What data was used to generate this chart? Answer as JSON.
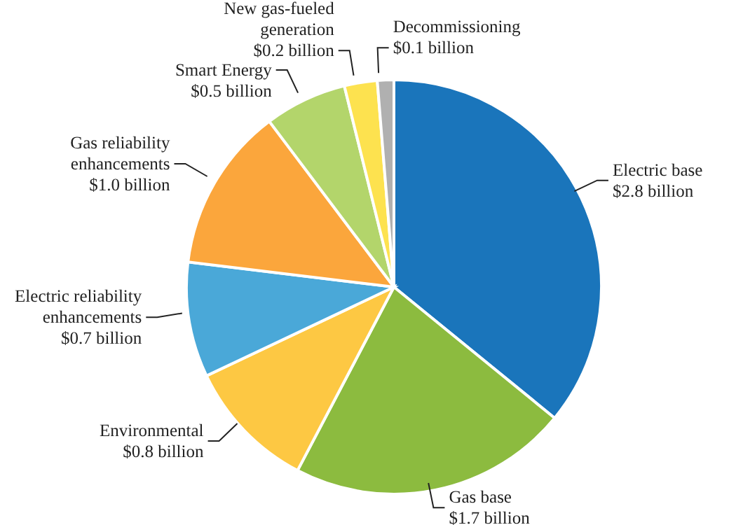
{
  "chart_data": {
    "type": "pie",
    "categories": [
      "Electric base",
      "Gas base",
      "Environmental",
      "Electric reliability enhancements",
      "Gas reliability enhancements",
      "Smart Energy",
      "New gas-fueled generation",
      "Decommissioning"
    ],
    "values": [
      2.8,
      1.7,
      0.8,
      0.7,
      1.0,
      0.5,
      0.2,
      0.1
    ],
    "value_labels": [
      "$2.8 billion",
      "$1.7 billion",
      "$0.8 billion",
      "$0.7 billion",
      "$1.0 billion",
      "$0.5 billion",
      "$0.2 billion",
      "$0.1 billion"
    ],
    "colors": [
      "#1a75bb",
      "#8cbb3f",
      "#fdc843",
      "#4aa8d8",
      "#fba63c",
      "#b3d56b",
      "#fde24f",
      "#b0b0b0"
    ],
    "legend": false
  }
}
